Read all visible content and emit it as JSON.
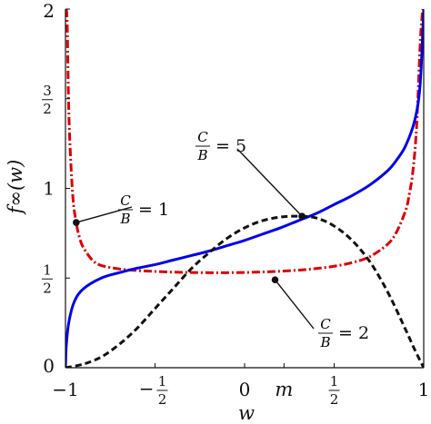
{
  "chart_data": {
    "type": "line",
    "xlabel": "w",
    "ylabel": "f∞(w)",
    "xlim": [
      -1,
      1
    ],
    "ylim": [
      0,
      2
    ],
    "x_ticks": [
      {
        "value": -1,
        "label": "−1"
      },
      {
        "value": -0.5,
        "label": "−1/2"
      },
      {
        "value": 0,
        "label": "0"
      },
      {
        "value": 0.5,
        "label": "1/2"
      },
      {
        "value": 1,
        "label": "1"
      }
    ],
    "x_marker": {
      "value": 0.22,
      "label": "m"
    },
    "y_ticks": [
      {
        "value": 0,
        "label": "0"
      },
      {
        "value": 0.5,
        "label": "1/2"
      },
      {
        "value": 1,
        "label": "1"
      },
      {
        "value": 1.5,
        "label": "3/2"
      },
      {
        "value": 2,
        "label": "2"
      }
    ],
    "series": [
      {
        "ratio": 1,
        "color": "#dd0000",
        "style": "dashdot",
        "x": [
          -0.995,
          -0.99,
          -0.98,
          -0.96,
          -0.94,
          -0.92,
          -0.9,
          -0.85,
          -0.8,
          -0.7,
          -0.6,
          -0.5,
          -0.4,
          -0.3,
          -0.2,
          -0.1,
          0,
          0.1,
          0.2,
          0.3,
          0.4,
          0.5,
          0.6,
          0.7,
          0.8,
          0.85,
          0.9,
          0.92,
          0.94,
          0.96,
          0.98,
          0.99,
          0.995
        ],
        "y": [
          2.0,
          1.9,
          1.38,
          0.97,
          0.81,
          0.72,
          0.67,
          0.6,
          0.57,
          0.551,
          0.542,
          0.537,
          0.533,
          0.531,
          0.53,
          0.53,
          0.531,
          0.534,
          0.538,
          0.544,
          0.553,
          0.566,
          0.586,
          0.62,
          0.69,
          0.76,
          0.88,
          0.97,
          1.1,
          1.34,
          1.8,
          1.95,
          2.0
        ]
      },
      {
        "ratio": 2,
        "color": "#0000ee",
        "style": "solid",
        "x": [
          -1,
          -0.995,
          -0.98,
          -0.95,
          -0.9,
          -0.8,
          -0.7,
          -0.6,
          -0.5,
          -0.4,
          -0.3,
          -0.2,
          -0.1,
          0,
          0.1,
          0.2,
          0.3,
          0.4,
          0.5,
          0.6,
          0.7,
          0.8,
          0.85,
          0.9,
          0.95,
          0.98,
          1.0
        ],
        "y": [
          0.0,
          0.13,
          0.26,
          0.37,
          0.44,
          0.5,
          0.53,
          0.555,
          0.575,
          0.6,
          0.625,
          0.65,
          0.68,
          0.71,
          0.745,
          0.78,
          0.82,
          0.86,
          0.91,
          0.96,
          1.02,
          1.1,
          1.16,
          1.24,
          1.38,
          1.58,
          2.0
        ]
      },
      {
        "ratio": 5,
        "color": "#111111",
        "style": "dashed",
        "x": [
          -1,
          -0.9,
          -0.8,
          -0.7,
          -0.6,
          -0.5,
          -0.4,
          -0.3,
          -0.2,
          -0.1,
          0,
          0.1,
          0.2,
          0.3,
          0.4,
          0.5,
          0.6,
          0.7,
          0.8,
          0.9,
          0.95,
          1.0
        ],
        "y": [
          0.0,
          0.02,
          0.06,
          0.13,
          0.22,
          0.33,
          0.44,
          0.55,
          0.64,
          0.72,
          0.78,
          0.82,
          0.84,
          0.845,
          0.835,
          0.79,
          0.71,
          0.59,
          0.42,
          0.21,
          0.1,
          0.0
        ]
      }
    ],
    "annotations": [
      {
        "series": 0,
        "x": -0.94,
        "y": 0.81,
        "fraction": "C/B",
        "value": "1",
        "text": "= 1"
      },
      {
        "series": 1,
        "x": 0.17,
        "y": 0.49,
        "fraction": "C/B",
        "value": "2",
        "text": "= 2"
      },
      {
        "series": 2,
        "x": 0.32,
        "y": 0.845,
        "fraction": "C/B",
        "value": "5",
        "text": "= 5"
      }
    ]
  }
}
